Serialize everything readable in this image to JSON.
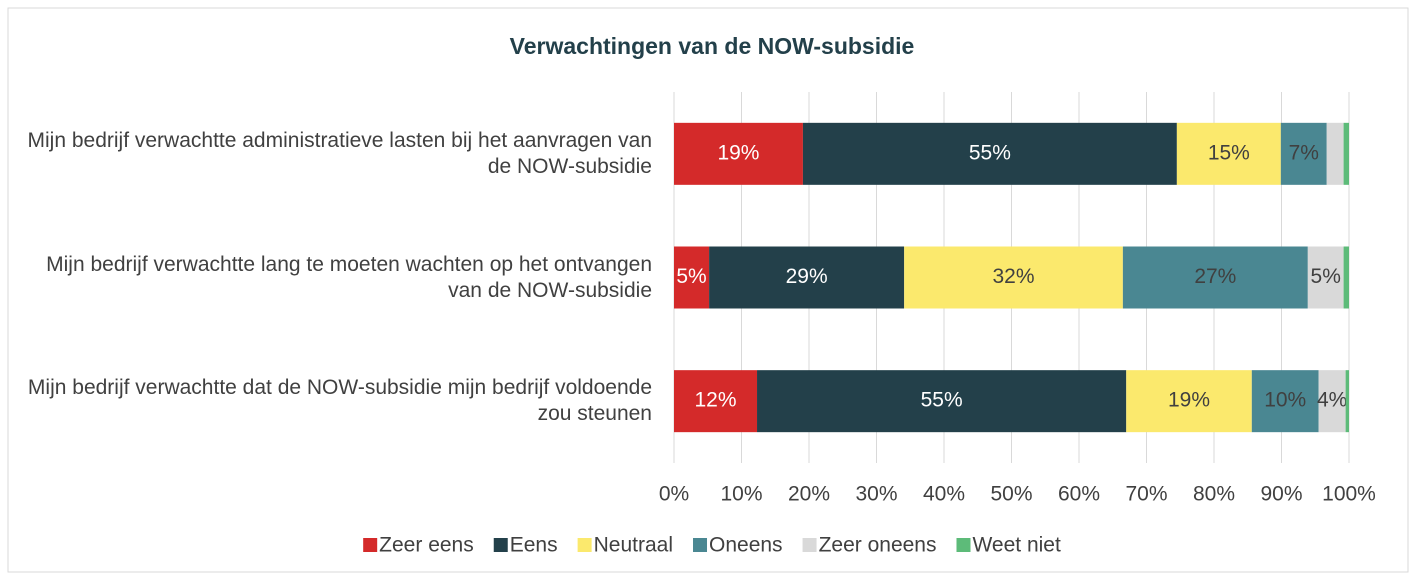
{
  "chart_data": {
    "type": "stacked_bar_horizontal",
    "title": "Verwachtingen van de NOW-subsidie",
    "categories": [
      "Mijn bedrijf verwachtte administratieve lasten bij het aanvragen van de NOW-subsidie",
      "Mijn bedrijf verwachtte lang te moeten wachten op het ontvangen van de NOW-subsidie",
      "Mijn bedrijf verwachtte dat de NOW-subsidie mijn bedrijf voldoende zou steunen"
    ],
    "series": [
      {
        "name": "Zeer eens",
        "color": "#d42a2a",
        "values": [
          19.1,
          5.2,
          12.3
        ],
        "value_labels": [
          "19%",
          "5%",
          "12%"
        ]
      },
      {
        "name": "Eens",
        "color": "#23404a",
        "values": [
          55.4,
          28.9,
          54.7
        ],
        "value_labels": [
          "55%",
          "29%",
          "55%"
        ]
      },
      {
        "name": "Neutraal",
        "color": "#fbe96d",
        "values": [
          15.4,
          32.4,
          18.6
        ],
        "value_labels": [
          "15%",
          "32%",
          "19%"
        ]
      },
      {
        "name": "Oneens",
        "color": "#4a8792",
        "values": [
          6.8,
          27.4,
          9.9
        ],
        "value_labels": [
          "7%",
          "27%",
          "10%"
        ]
      },
      {
        "name": "Zeer oneens",
        "color": "#d9d9d9",
        "values": [
          2.5,
          5.3,
          4.0
        ],
        "value_labels": [
          null,
          "5%",
          "4%"
        ]
      },
      {
        "name": "Weet niet",
        "color": "#5dbb79",
        "values": [
          0.8,
          0.8,
          0.5
        ],
        "value_labels": [
          null,
          null,
          null
        ]
      }
    ],
    "xlim": [
      0,
      100
    ],
    "xticks": [
      {
        "value": 0,
        "label": "0%"
      },
      {
        "value": 10,
        "label": "10%"
      },
      {
        "value": 20,
        "label": "20%"
      },
      {
        "value": 30,
        "label": "30%"
      },
      {
        "value": 40,
        "label": "40%"
      },
      {
        "value": 50,
        "label": "50%"
      },
      {
        "value": 60,
        "label": "60%"
      },
      {
        "value": 70,
        "label": "70%"
      },
      {
        "value": 80,
        "label": "80%"
      },
      {
        "value": 90,
        "label": "90%"
      },
      {
        "value": 100,
        "label": "100%"
      }
    ],
    "grid": true,
    "legend": "bottom"
  }
}
